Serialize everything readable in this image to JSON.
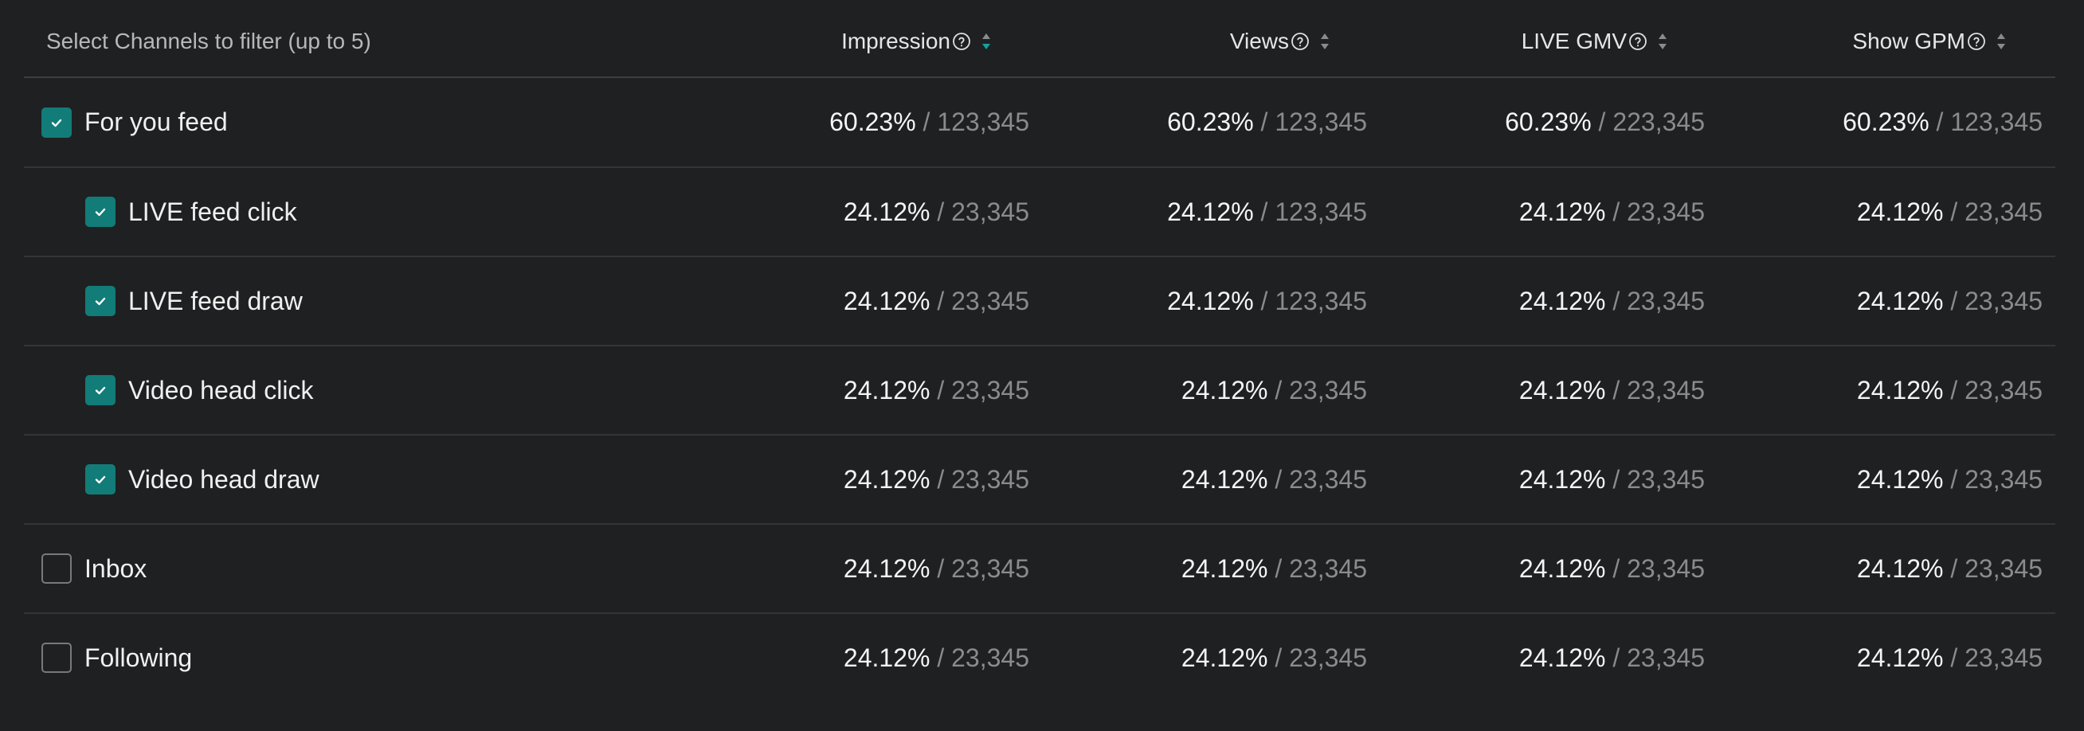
{
  "header": {
    "filter_label": "Select Channels to filter (up to 5)",
    "columns": [
      {
        "label": "Impression",
        "sort_active": true
      },
      {
        "label": "Views",
        "sort_active": false
      },
      {
        "label": "LIVE GMV",
        "sort_active": false
      },
      {
        "label": "Show GPM",
        "sort_active": false
      }
    ]
  },
  "separator": " / ",
  "colors": {
    "background": "#1f2022",
    "checkbox_checked": "#127c78",
    "sort_active": "#13a39d",
    "muted_text": "#8a8b8e"
  },
  "rows": [
    {
      "name": "For you feed",
      "checked": true,
      "indent": false,
      "cells": [
        {
          "pct": "60.23%",
          "num": "123,345"
        },
        {
          "pct": "60.23%",
          "num": "123,345"
        },
        {
          "pct": "60.23%",
          "num": "223,345"
        },
        {
          "pct": "60.23%",
          "num": "123,345"
        }
      ]
    },
    {
      "name": "LIVE feed click",
      "checked": true,
      "indent": true,
      "cells": [
        {
          "pct": "24.12%",
          "num": "23,345"
        },
        {
          "pct": "24.12%",
          "num": "123,345"
        },
        {
          "pct": "24.12%",
          "num": "23,345"
        },
        {
          "pct": "24.12%",
          "num": "23,345"
        }
      ]
    },
    {
      "name": "LIVE feed draw",
      "checked": true,
      "indent": true,
      "cells": [
        {
          "pct": "24.12%",
          "num": "23,345"
        },
        {
          "pct": "24.12%",
          "num": "123,345"
        },
        {
          "pct": "24.12%",
          "num": "23,345"
        },
        {
          "pct": "24.12%",
          "num": "23,345"
        }
      ]
    },
    {
      "name": "Video head click",
      "checked": true,
      "indent": true,
      "cells": [
        {
          "pct": "24.12%",
          "num": "23,345"
        },
        {
          "pct": "24.12%",
          "num": "23,345"
        },
        {
          "pct": "24.12%",
          "num": "23,345"
        },
        {
          "pct": "24.12%",
          "num": "23,345"
        }
      ]
    },
    {
      "name": "Video head draw",
      "checked": true,
      "indent": true,
      "cells": [
        {
          "pct": "24.12%",
          "num": "23,345"
        },
        {
          "pct": "24.12%",
          "num": "23,345"
        },
        {
          "pct": "24.12%",
          "num": "23,345"
        },
        {
          "pct": "24.12%",
          "num": "23,345"
        }
      ]
    },
    {
      "name": "Inbox",
      "checked": false,
      "indent": false,
      "cells": [
        {
          "pct": "24.12%",
          "num": "23,345"
        },
        {
          "pct": "24.12%",
          "num": "23,345"
        },
        {
          "pct": "24.12%",
          "num": "23,345"
        },
        {
          "pct": "24.12%",
          "num": "23,345"
        }
      ]
    },
    {
      "name": "Following",
      "checked": false,
      "indent": false,
      "cells": [
        {
          "pct": "24.12%",
          "num": "23,345"
        },
        {
          "pct": "24.12%",
          "num": "23,345"
        },
        {
          "pct": "24.12%",
          "num": "23,345"
        },
        {
          "pct": "24.12%",
          "num": "23,345"
        }
      ]
    }
  ]
}
